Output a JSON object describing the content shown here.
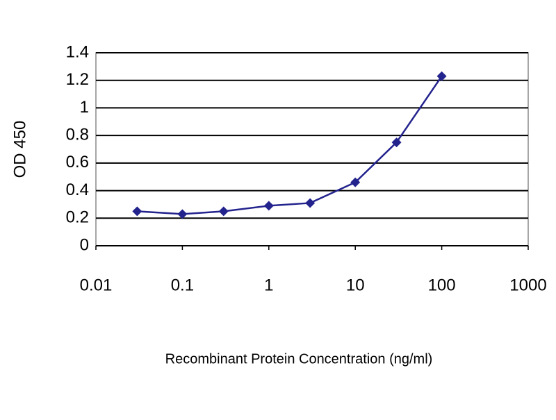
{
  "chart_data": {
    "type": "line",
    "x_label": "Recombinant Protein Concentration (ng/ml)",
    "y_label": "OD 450",
    "x_scale": "log",
    "xlim": [
      0.01,
      1000
    ],
    "xticks": [
      0.01,
      0.1,
      1,
      10,
      100,
      1000
    ],
    "ylim": [
      0,
      1.4
    ],
    "yticks": [
      0,
      0.2,
      0.4,
      0.6,
      0.8,
      1,
      1.2,
      1.4
    ],
    "grid": true,
    "series": [
      {
        "color": "#23238e",
        "x": [
          0.03,
          0.1,
          0.3,
          1,
          3,
          10,
          30,
          100
        ],
        "values": [
          0.25,
          0.23,
          0.25,
          0.29,
          0.31,
          0.46,
          0.75,
          1.23
        ]
      }
    ]
  }
}
